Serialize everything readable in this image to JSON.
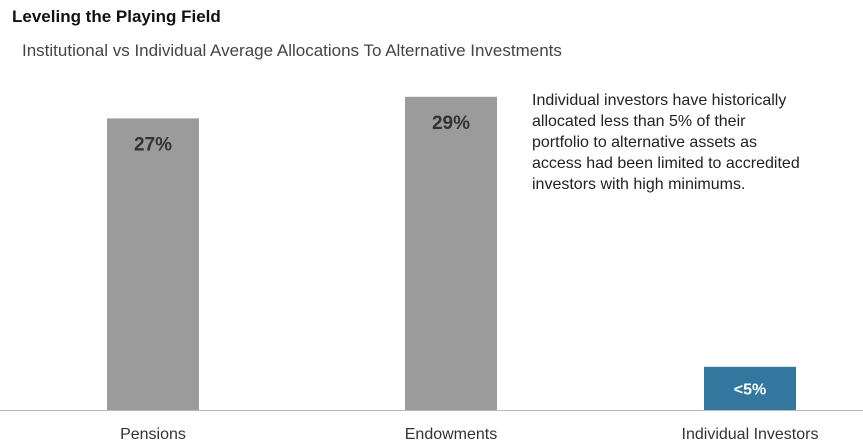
{
  "title": "Leveling the Playing Field",
  "subtitle": "Institutional vs Individual Average Allocations To Alternative Investments",
  "annotation": {
    "lines": [
      "Individual investors have historically",
      "allocated less than 5% of their",
      "portfolio to alternative assets as",
      "access had been limited to accredited",
      "investors with high minimums."
    ]
  },
  "colors": {
    "institutional_bar": "#9b9b9b",
    "individual_bar": "#33779f",
    "label_dark": "#333333",
    "label_light": "#ffffff",
    "axis": "#bbbbbb",
    "tick_label": "#333333"
  },
  "chart_data": {
    "type": "bar",
    "categories": [
      "Pensions",
      "Endowments",
      "Individual Investors"
    ],
    "values": [
      27,
      29,
      4
    ],
    "data_labels": [
      "27%",
      "29%",
      "<5%"
    ],
    "ylim": [
      0,
      30
    ],
    "grid": false,
    "legend": "none",
    "xlabel": "",
    "ylabel": ""
  }
}
